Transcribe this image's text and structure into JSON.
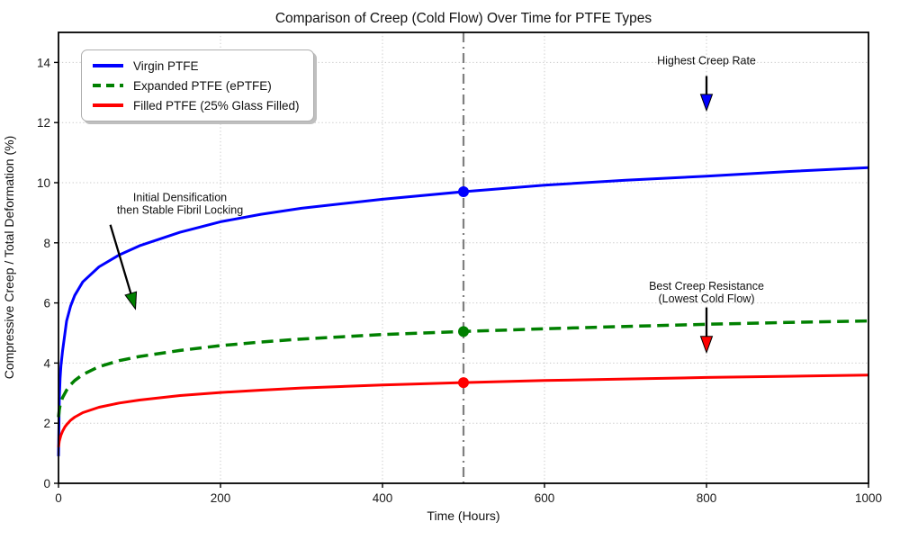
{
  "chart_data": {
    "type": "line",
    "title": "Comparison of Creep (Cold Flow) Over Time for PTFE Types",
    "xlabel": "Time (Hours)",
    "ylabel": "Compressive Creep / Total Deformation (%)",
    "xlim": [
      0,
      1000
    ],
    "ylim": [
      0,
      15
    ],
    "xticks": [
      0,
      200,
      400,
      600,
      800,
      1000
    ],
    "yticks": [
      0,
      2,
      4,
      6,
      8,
      10,
      12,
      14
    ],
    "grid": true,
    "grid_style": "dotted",
    "legend_position": "upper-left",
    "x": [
      0,
      1,
      2,
      3,
      5,
      8,
      10,
      15,
      20,
      30,
      50,
      75,
      100,
      150,
      200,
      250,
      300,
      400,
      500,
      600,
      700,
      800,
      900,
      1000
    ],
    "series": [
      {
        "name": "Virgin PTFE",
        "color": "#0000ff",
        "style": "solid",
        "width": 3,
        "values": [
          0.9,
          2.8,
          3.5,
          3.9,
          4.4,
          5.0,
          5.4,
          5.9,
          6.25,
          6.7,
          7.2,
          7.6,
          7.9,
          8.35,
          8.7,
          8.95,
          9.15,
          9.45,
          9.7,
          9.92,
          10.08,
          10.22,
          10.37,
          10.5
        ],
        "marker": {
          "x": 500,
          "y": 9.7
        }
      },
      {
        "name": "Expanded PTFE (ePTFE)",
        "color": "#008000",
        "style": "dashed",
        "width": 3.5,
        "values": [
          2.2,
          2.45,
          2.6,
          2.7,
          2.85,
          3.0,
          3.1,
          3.28,
          3.42,
          3.62,
          3.88,
          4.08,
          4.22,
          4.42,
          4.58,
          4.7,
          4.8,
          4.95,
          5.05,
          5.14,
          5.22,
          5.29,
          5.35,
          5.4
        ],
        "marker": {
          "x": 500,
          "y": 5.05
        }
      },
      {
        "name": "Filled PTFE (25% Glass Filled)",
        "color": "#ff0000",
        "style": "solid",
        "width": 3,
        "values": [
          1.2,
          1.4,
          1.5,
          1.6,
          1.73,
          1.88,
          1.95,
          2.1,
          2.2,
          2.35,
          2.53,
          2.67,
          2.77,
          2.92,
          3.02,
          3.1,
          3.17,
          3.27,
          3.35,
          3.42,
          3.47,
          3.52,
          3.56,
          3.6
        ],
        "marker": {
          "x": 500,
          "y": 3.35
        }
      }
    ],
    "vline": {
      "x": 500,
      "color": "#7f7f7f",
      "style": "dashdot",
      "width": 2.2
    },
    "annotations": [
      {
        "id": "highest-creep-rate",
        "lines": [
          "Highest Creep Rate"
        ],
        "text_x": 800,
        "text_y": 14.05,
        "arrow_from": [
          800,
          13.55
        ],
        "arrow_to": [
          800,
          12.4
        ],
        "head_color": "#0000ff"
      },
      {
        "id": "initial-densification",
        "lines": [
          "Initial Densification",
          "then Stable Fibril Locking"
        ],
        "text_x": 150,
        "text_y": 9.5,
        "arrow_from": [
          64,
          8.6
        ],
        "arrow_to": [
          95,
          5.8
        ],
        "head_color": "#008000"
      },
      {
        "id": "best-creep-resistance",
        "lines": [
          "Best Creep Resistance",
          "(Lowest Cold Flow)"
        ],
        "text_x": 800,
        "text_y": 6.55,
        "arrow_from": [
          800,
          5.85
        ],
        "arrow_to": [
          800,
          4.35
        ],
        "head_color": "#ff0000"
      }
    ],
    "colors": {
      "spine": "#000000",
      "gridline": "#c8c8c8",
      "arrow_shaft": "#000000"
    }
  }
}
